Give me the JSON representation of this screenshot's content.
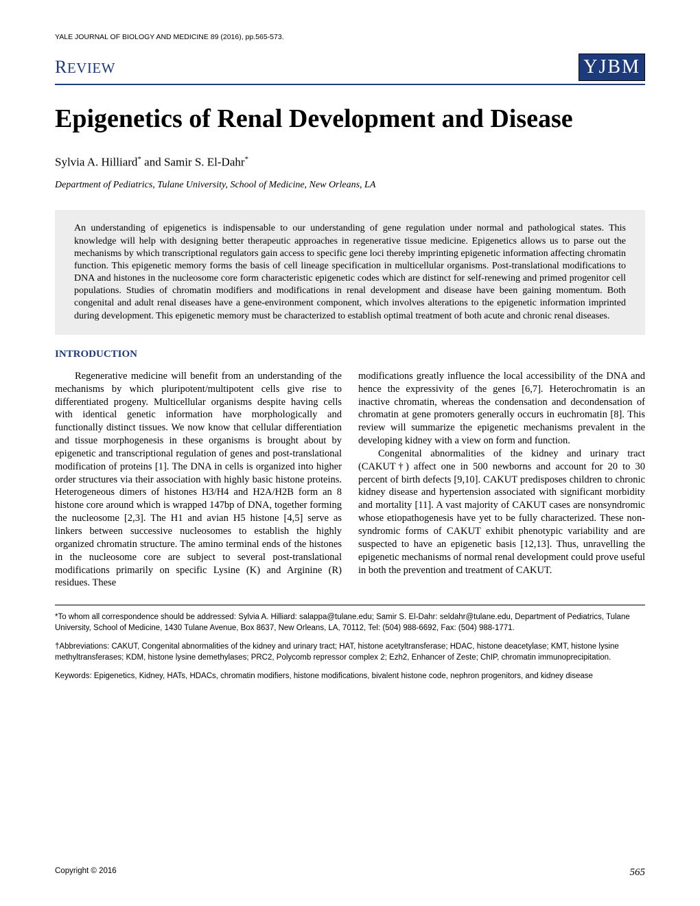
{
  "journal_header": "YALE JOURNAL OF BIOLOGY AND MEDICINE 89 (2016), pp.565-573.",
  "review_label": "REVIEW",
  "logo_text": "YJBM",
  "title": "Epigenetics of Renal Development and Disease",
  "authors_html": "Sylvia A. Hilliard* and Samir S. El-Dahr*",
  "affiliation": "Department of Pediatrics, Tulane University, School of Medicine, New Orleans, LA",
  "abstract": "An understanding of epigenetics is indispensable to our understanding of gene regulation under normal and pathological states. This knowledge will help with designing better therapeutic approaches in regenerative tissue medicine. Epigenetics allows us to parse out the mechanisms by which transcriptional regulators gain access to specific gene loci thereby imprinting epigenetic information affecting chromatin function. This epigenetic memory forms the basis of cell lineage specification in multicellular organisms. Post-translational modifications to DNA and histones in the nucleosome core form characteristic epigenetic codes which are distinct for self-renewing and primed progenitor cell populations. Studies of chromatin modifiers and modifications in renal development and disease have been gaining momentum. Both congenital and adult renal diseases have a gene-environment component, which involves alterations to the epigenetic information imprinted during development. This epigenetic memory must be characterized to establish optimal treatment of both acute and chronic renal diseases.",
  "section_heading": "INTRODUCTION",
  "para1": "Regenerative medicine will benefit from an understanding of the mechanisms by which pluripotent/multipotent cells give rise to differentiated progeny. Multicellular organisms despite having cells with identical genetic information have morphologically and functionally distinct tissues. We now know that cellular differentiation and tissue morphogenesis in these organisms is brought about by epigenetic and transcriptional regulation of genes and post-translational modification of proteins [1]. The DNA in cells is organized into higher order structures via their association with highly basic histone proteins. Heterogeneous dimers of histones H3/H4 and H2A/H2B form an 8 histone core around which is wrapped 147bp of DNA, together forming the nucleosome [2,3]. The H1 and avian H5 histone [4,5] serve as linkers between successive nucleosomes to establish the highly organized chromatin structure. The amino terminal ends of the histones in the nucleosome core are subject to several post-translational modifications primarily on specific Lysine (K) and Arginine (R) residues. These",
  "para2": "modifications greatly influence the local accessibility of the DNA and hence the expressivity of the genes [6,7]. Heterochromatin is an inactive chromatin, whereas the condensation and decondensation of chromatin at gene promoters generally occurs in euchromatin [8]. This review will summarize the epigenetic mechanisms prevalent in the developing kidney with a view on form and function.",
  "para3": "Congenital abnormalities of the kidney and urinary tract (CAKUT†) affect one in 500 newborns and account for 20 to 30 percent of birth defects [9,10]. CAKUT predisposes children to chronic kidney disease and hypertension associated with significant morbidity and mortality [11]. A vast majority of CAKUT cases are nonsyndromic whose etiopathogenesis have yet to be fully characterized. These non-syndromic forms of CAKUT exhibit phenotypic variability and are suspected to have an epigenetic basis [12,13]. Thus, unravelling the epigenetic mechanisms of normal renal development could prove useful in both the prevention and treatment of CAKUT.",
  "correspondence": "*To whom all correspondence should be addressed: Sylvia A. Hilliard: salappa@tulane.edu; Samir S. El-Dahr: seldahr@tulane.edu, Department of Pediatrics, Tulane University, School of Medicine, 1430 Tulane Avenue, Box 8637, New Orleans, LA, 70112, Tel: (504) 988-6692, Fax: (504) 988-1771.",
  "abbreviations": "†Abbreviations: CAKUT, Congenital abnormalities of the kidney and urinary tract; HAT, histone acetyltransferase; HDAC, histone deacetylase; KMT, histone lysine methyltransferases; KDM, histone lysine demethylases; PRC2, Polycomb repressor complex 2; Ezh2, Enhancer of Zeste; ChIP, chromatin immunoprecipitation.",
  "keywords": "Keywords: Epigenetics, Kidney, HATs, HDACs, chromatin modifiers, histone modifications, bivalent histone code, nephron progenitors, and kidney disease",
  "copyright": "Copyright © 2016",
  "page_number": "565",
  "colors": {
    "accent": "#1d3b7a",
    "abstract_bg": "#ededed",
    "text": "#000000",
    "background": "#ffffff"
  },
  "fonts": {
    "body": "Times New Roman",
    "sans": "Arial",
    "title_size_pt": 38,
    "body_size_pt": 14.5,
    "footer_size_pt": 11.5
  }
}
